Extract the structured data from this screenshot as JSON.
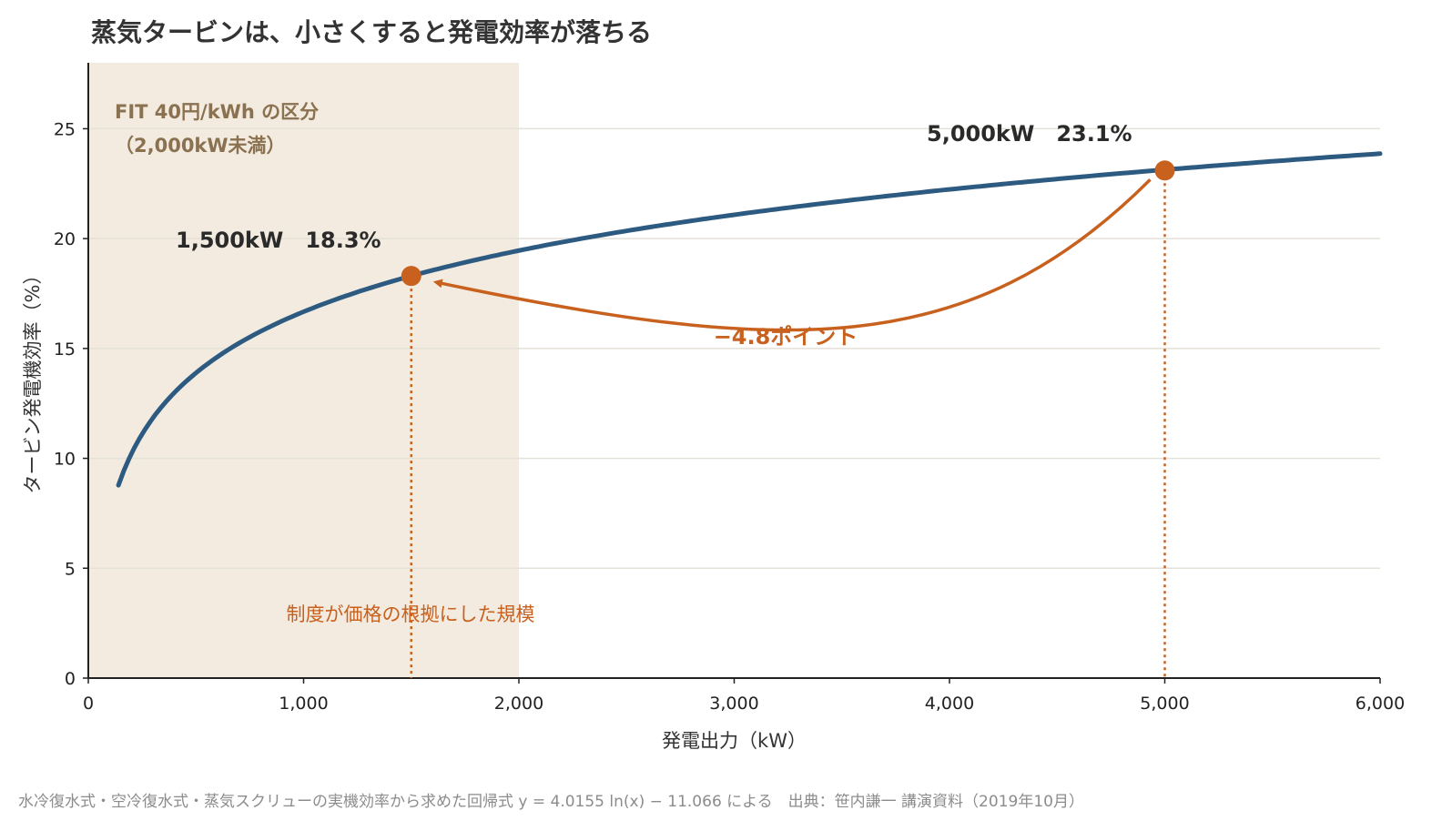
{
  "title": "蒸気タービンは、小さくすると発電効率が落ちる",
  "footnote": "水冷復水式・空冷復水式・蒸気スクリューの実機効率から求めた回帰式 y = 4.0155 ln(x) − 11.066 による　出典：笹内謙一 講演資料（2019年10月）",
  "colors": {
    "curve": "#2d5a80",
    "accent": "#c8601e",
    "band": "#f3ebdf",
    "band_text": "#8a7150",
    "grid": "#e4e1d8",
    "axis": "#222222"
  },
  "chart_data": {
    "type": "line",
    "xlabel": "発電出力（kW）",
    "ylabel": "タービン発電機効率（%）",
    "xlim": [
      0,
      6000
    ],
    "ylim": [
      0,
      28
    ],
    "x_ticks": [
      0,
      1000,
      2000,
      3000,
      4000,
      5000,
      6000
    ],
    "x_tick_labels": [
      "0",
      "1,000",
      "2,000",
      "3,000",
      "4,000",
      "5,000",
      "6,000"
    ],
    "y_ticks": [
      0,
      5,
      10,
      15,
      20,
      25
    ],
    "y_tick_labels": [
      "0",
      "5",
      "10",
      "15",
      "20",
      "25"
    ],
    "grid": "horizontal",
    "series": [
      {
        "x": [
          140,
          200,
          300,
          400,
          500,
          600,
          800,
          1000,
          1250,
          1500,
          1750,
          2000,
          2500,
          3000,
          3500,
          4000,
          4500,
          5000,
          5500,
          6000
        ],
        "y": [
          8.8,
          10.2,
          11.8,
          13.0,
          13.9,
          14.6,
          15.8,
          16.7,
          17.6,
          18.3,
          18.9,
          19.4,
          20.3,
          21.1,
          21.7,
          22.2,
          22.7,
          23.1,
          23.5,
          23.9
        ],
        "formula": "y = 4.0155 ln(x) − 11.066"
      }
    ],
    "shaded_region": {
      "x_range": [
        0,
        2000
      ],
      "label_line1": "FIT 40円/kWh の区分",
      "label_line2": "（2,000kW未満）"
    },
    "highlight_points": [
      {
        "x": 1500,
        "y": 18.3,
        "label": "1,500kW　18.3%"
      },
      {
        "x": 5000,
        "y": 23.1,
        "label": "5,000kW　23.1%"
      }
    ],
    "arrow": {
      "from_x": 5000,
      "to_x": 1500,
      "label": "−4.8ポイント"
    },
    "band_caption": "制度が価格の根拠にした規模"
  }
}
